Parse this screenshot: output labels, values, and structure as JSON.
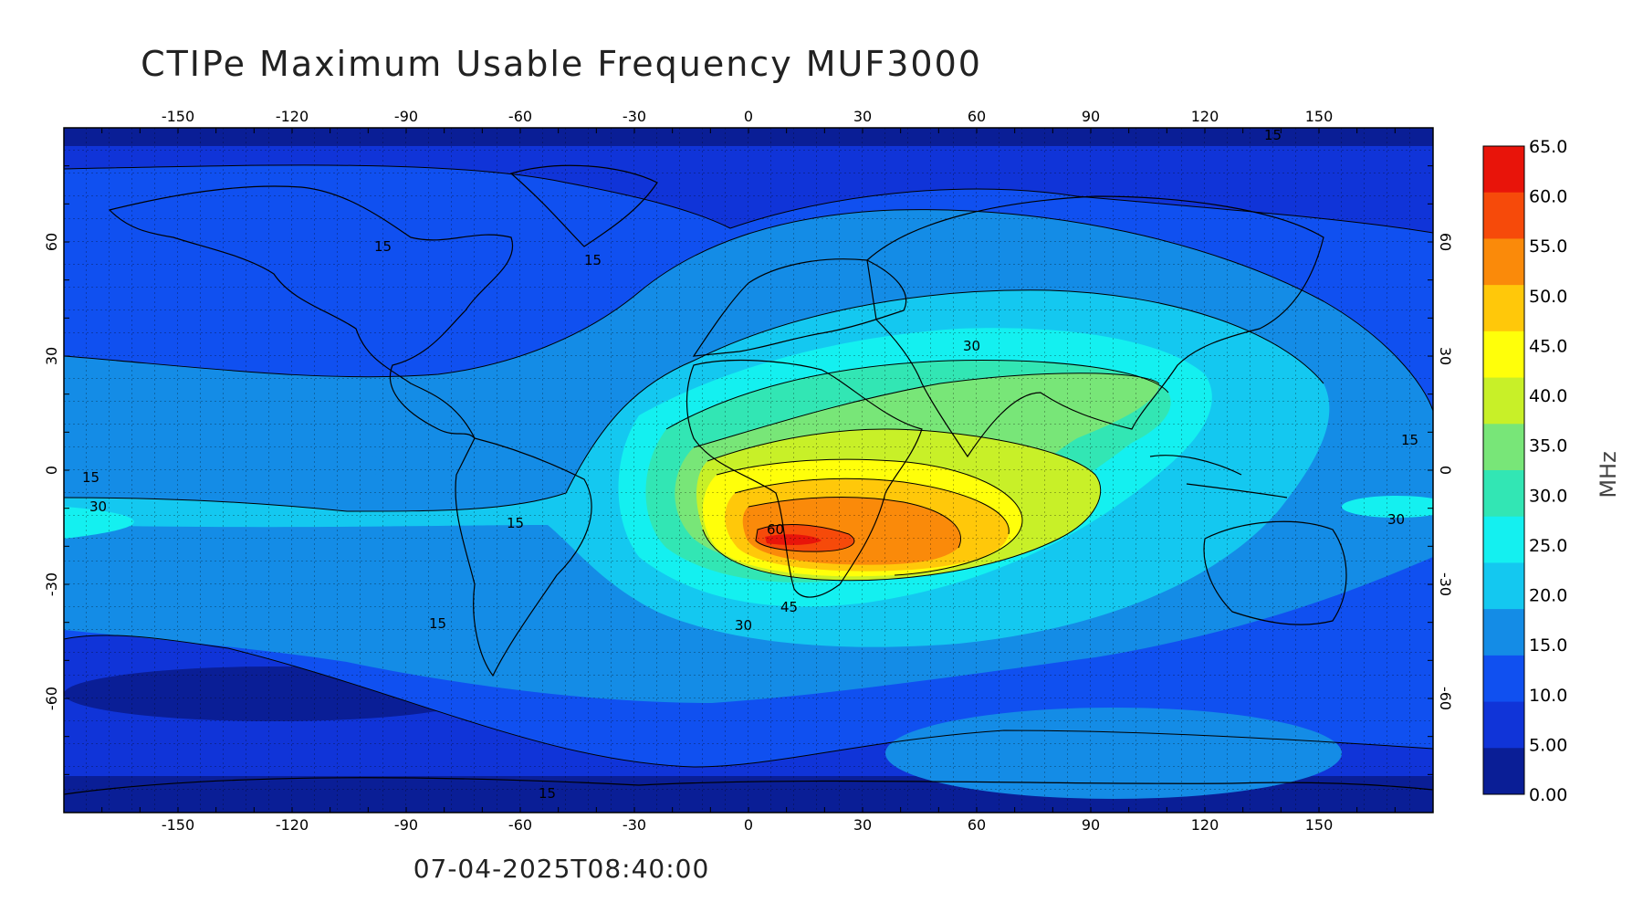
{
  "title": "CTIPe Maximum Usable Frequency MUF3000",
  "timestamp": "07-04-2025T08:40:00",
  "units": "MHz",
  "x_ticks": [
    -150,
    -120,
    -90,
    -60,
    -30,
    0,
    30,
    60,
    90,
    120,
    150
  ],
  "y_ticks": [
    60,
    30,
    0,
    -30,
    -60
  ],
  "colorbar": {
    "labels": [
      "65.0",
      "60.0",
      "55.0",
      "50.0",
      "45.0",
      "40.0",
      "35.0",
      "30.0",
      "25.0",
      "20.0",
      "15.0",
      "10.0",
      "5.00",
      "0.00"
    ],
    "colors": [
      "#e8140a",
      "#f64a0a",
      "#fa8a0a",
      "#ffc80a",
      "#ffff0a",
      "#c8f028",
      "#78e678",
      "#32e6b4",
      "#14f0f0",
      "#14c8f0",
      "#148ce6",
      "#1050f0",
      "#1034d8",
      "#0a1e96"
    ]
  },
  "contour_labels": [
    "15",
    "15",
    "15",
    "15",
    "15",
    "15",
    "15",
    "15",
    "30",
    "30",
    "30",
    "30",
    "45",
    "60"
  ],
  "chart_data": {
    "type": "heatmap",
    "title": "CTIPe Maximum Usable Frequency MUF3000",
    "xlabel": "",
    "ylabel": "",
    "colorbar_label": "MHz",
    "xlim": [
      -180,
      180
    ],
    "ylim": [
      -90,
      90
    ],
    "value_range": [
      0,
      65
    ],
    "peak": {
      "lon": 10,
      "lat": -18,
      "value": 60
    },
    "timestamp": "07-04-2025T08:40:00"
  }
}
